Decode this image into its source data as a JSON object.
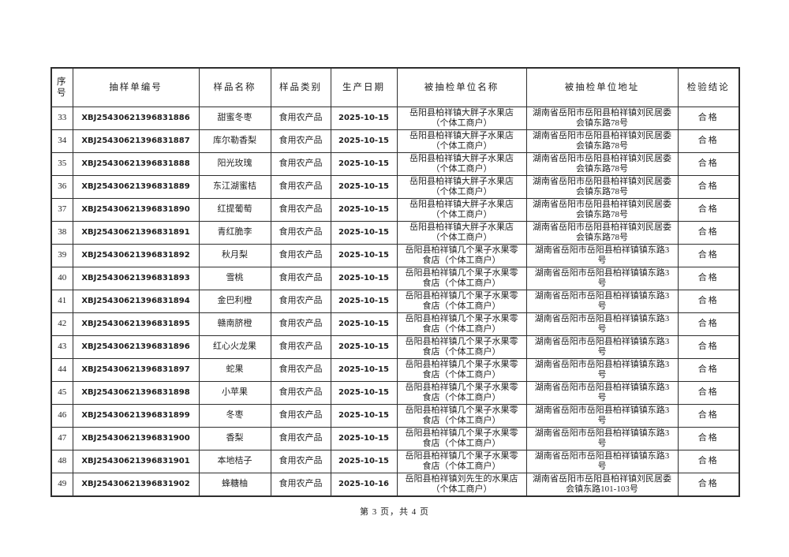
{
  "document": {
    "table": {
      "headers": [
        "序号",
        "抽样单编号",
        "样品名称",
        "样品类别",
        "生产日期",
        "被抽检单位名称",
        "被抽检单位地址",
        "检验结论"
      ],
      "rows": [
        [
          "33",
          "XBJ25430621396831886",
          "甜蜜冬枣",
          "食用农产品",
          "2025-10-15",
          "岳阳县柏祥镇大胖子水果店（个体工商户）",
          "湖南省岳阳市岳阳县柏祥镇刘民居委会镇东路78号",
          "合格"
        ],
        [
          "34",
          "XBJ25430621396831887",
          "库尔勒香梨",
          "食用农产品",
          "2025-10-15",
          "岳阳县柏祥镇大胖子水果店（个体工商户）",
          "湖南省岳阳市岳阳县柏祥镇刘民居委会镇东路78号",
          "合格"
        ],
        [
          "35",
          "XBJ25430621396831888",
          "阳光玫瑰",
          "食用农产品",
          "2025-10-15",
          "岳阳县柏祥镇大胖子水果店（个体工商户）",
          "湖南省岳阳市岳阳县柏祥镇刘民居委会镇东路78号",
          "合格"
        ],
        [
          "36",
          "XBJ25430621396831889",
          "东江湖蜜桔",
          "食用农产品",
          "2025-10-15",
          "岳阳县柏祥镇大胖子水果店（个体工商户）",
          "湖南省岳阳市岳阳县柏祥镇刘民居委会镇东路78号",
          "合格"
        ],
        [
          "37",
          "XBJ25430621396831890",
          "红提葡萄",
          "食用农产品",
          "2025-10-15",
          "岳阳县柏祥镇大胖子水果店（个体工商户）",
          "湖南省岳阳市岳阳县柏祥镇刘民居委会镇东路78号",
          "合格"
        ],
        [
          "38",
          "XBJ25430621396831891",
          "青红脆李",
          "食用农产品",
          "2025-10-15",
          "岳阳县柏祥镇大胖子水果店（个体工商户）",
          "湖南省岳阳市岳阳县柏祥镇刘民居委会镇东路78号",
          "合格"
        ],
        [
          "39",
          "XBJ25430621396831892",
          "秋月梨",
          "食用农产品",
          "2025-10-15",
          "岳阳县柏祥镇几个果子水果零食店（个体工商户）",
          "湖南省岳阳市岳阳县柏祥镇镇东路3号",
          "合格"
        ],
        [
          "40",
          "XBJ25430621396831893",
          "雪桃",
          "食用农产品",
          "2025-10-15",
          "岳阳县柏祥镇几个果子水果零食店（个体工商户）",
          "湖南省岳阳市岳阳县柏祥镇镇东路3号",
          "合格"
        ],
        [
          "41",
          "XBJ25430621396831894",
          "金巴利橙",
          "食用农产品",
          "2025-10-15",
          "岳阳县柏祥镇几个果子水果零食店（个体工商户）",
          "湖南省岳阳市岳阳县柏祥镇镇东路3号",
          "合格"
        ],
        [
          "42",
          "XBJ25430621396831895",
          "赣南脐橙",
          "食用农产品",
          "2025-10-15",
          "岳阳县柏祥镇几个果子水果零食店（个体工商户）",
          "湖南省岳阳市岳阳县柏祥镇镇东路3号",
          "合格"
        ],
        [
          "43",
          "XBJ25430621396831896",
          "红心火龙果",
          "食用农产品",
          "2025-10-15",
          "岳阳县柏祥镇几个果子水果零食店（个体工商户）",
          "湖南省岳阳市岳阳县柏祥镇镇东路3号",
          "合格"
        ],
        [
          "44",
          "XBJ25430621396831897",
          "蛇果",
          "食用农产品",
          "2025-10-15",
          "岳阳县柏祥镇几个果子水果零食店（个体工商户）",
          "湖南省岳阳市岳阳县柏祥镇镇东路3号",
          "合格"
        ],
        [
          "45",
          "XBJ25430621396831898",
          "小苹果",
          "食用农产品",
          "2025-10-15",
          "岳阳县柏祥镇几个果子水果零食店（个体工商户）",
          "湖南省岳阳市岳阳县柏祥镇镇东路3号",
          "合格"
        ],
        [
          "46",
          "XBJ25430621396831899",
          "冬枣",
          "食用农产品",
          "2025-10-15",
          "岳阳县柏祥镇几个果子水果零食店（个体工商户）",
          "湖南省岳阳市岳阳县柏祥镇镇东路3号",
          "合格"
        ],
        [
          "47",
          "XBJ25430621396831900",
          "香梨",
          "食用农产品",
          "2025-10-15",
          "岳阳县柏祥镇几个果子水果零食店（个体工商户）",
          "湖南省岳阳市岳阳县柏祥镇镇东路3号",
          "合格"
        ],
        [
          "48",
          "XBJ25430621396831901",
          "本地桔子",
          "食用农产品",
          "2025-10-15",
          "岳阳县柏祥镇几个果子水果零食店（个体工商户）",
          "湖南省岳阳市岳阳县柏祥镇镇东路3号",
          "合格"
        ],
        [
          "49",
          "XBJ25430621396831902",
          "蜂糖柚",
          "食用农产品",
          "2025-10-16",
          "岳阳县柏祥镇刘先生的水果店（个体工商户）",
          "湖南省岳阳市岳阳县柏祥镇刘民居委会镇东路101-103号",
          "合格"
        ]
      ]
    },
    "footer": {
      "page_info": "第 3 页，共 4 页"
    },
    "colors": {
      "border": "#2e2e2e",
      "text": "#1f1f1f",
      "background": "#ffffff"
    }
  }
}
